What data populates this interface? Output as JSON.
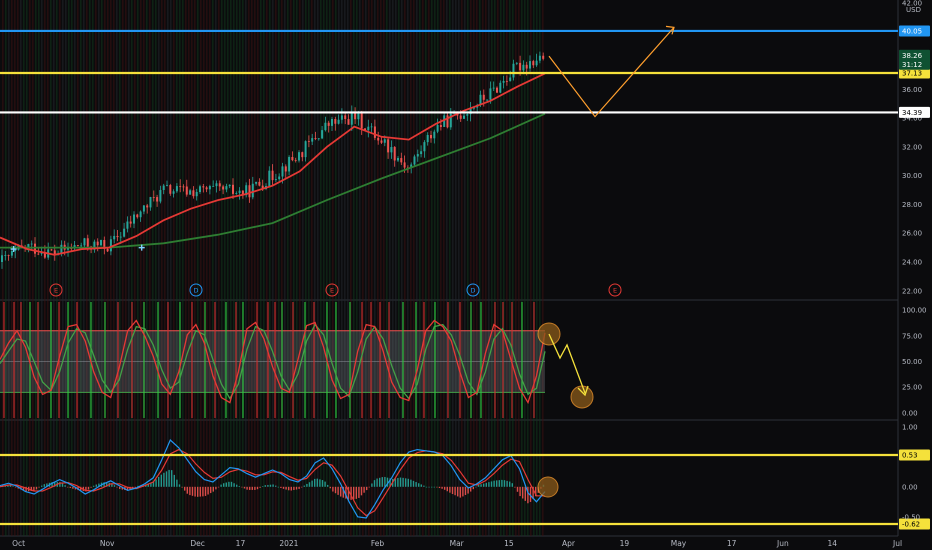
{
  "chart_data": {
    "type": "candlestick",
    "currency": "USD",
    "price_panel": {
      "y_ticks": [
        "42.00",
        "36.00",
        "34.00",
        "32.00",
        "30.00",
        "28.00",
        "26.00",
        "24.00",
        "22.00"
      ],
      "ylim": [
        21.5,
        42.2
      ],
      "last_price": "38.26",
      "countdown": "31:12",
      "horizontal_levels": [
        {
          "label": "40.05",
          "value": 40.05,
          "color": "#2196f3"
        },
        {
          "label": "37.13",
          "value": 37.13,
          "color": "#f5e13b"
        },
        {
          "label": "34.39",
          "value": 34.39,
          "color": "#ffffff"
        }
      ],
      "ma_fast": {
        "color": "#e53935",
        "x": [
          0,
          0.05,
          0.1,
          0.15,
          0.2,
          0.25,
          0.3,
          0.35,
          0.4,
          0.45,
          0.5,
          0.55,
          0.6,
          0.65,
          0.7,
          0.75,
          0.8,
          0.85,
          0.9,
          0.95,
          1.0
        ],
        "y": [
          25.7,
          24.9,
          24.5,
          24.9,
          25.0,
          25.8,
          26.9,
          27.7,
          28.3,
          28.7,
          29.3,
          30.3,
          32.0,
          33.4,
          32.7,
          32.5,
          33.6,
          34.5,
          35.2,
          36.2,
          37.1
        ]
      },
      "ma_slow": {
        "color": "#2e7d32",
        "x": [
          0,
          0.1,
          0.2,
          0.3,
          0.4,
          0.5,
          0.6,
          0.7,
          0.8,
          0.9,
          1.0
        ],
        "y": [
          25.0,
          25.0,
          25.0,
          25.3,
          25.9,
          26.7,
          28.3,
          29.8,
          31.2,
          32.6,
          34.3
        ]
      },
      "price_path": {
        "x": [
          0,
          0.05,
          0.1,
          0.15,
          0.2,
          0.25,
          0.3,
          0.35,
          0.4,
          0.45,
          0.5,
          0.55,
          0.6,
          0.65,
          0.7,
          0.75,
          0.8,
          0.85,
          0.9,
          0.95,
          1.0
        ],
        "y": [
          24.0,
          25.1,
          24.6,
          25.2,
          25.1,
          27.2,
          29.0,
          28.9,
          29.0,
          28.8,
          30.0,
          31.5,
          33.5,
          34.1,
          32.5,
          30.5,
          33.4,
          34.4,
          35.7,
          37.6,
          38.3
        ]
      },
      "event_markers": [
        {
          "label": "E",
          "color": "#e53935"
        },
        {
          "label": "D",
          "color": "#2196f3"
        },
        {
          "label": "E",
          "color": "#e53935"
        },
        {
          "label": "D",
          "color": "#2196f3"
        },
        {
          "label": "E",
          "color": "#e53935"
        }
      ]
    },
    "stoch_panel": {
      "y_ticks": [
        "100.00",
        "75.00",
        "50.00",
        "25.00",
        "0.00"
      ],
      "ylim": [
        -5,
        108
      ],
      "band": [
        20,
        80
      ],
      "k_color": "#e53935",
      "d_color": "#43a047",
      "k": [
        52,
        68,
        80,
        64,
        35,
        18,
        22,
        55,
        84,
        86,
        70,
        40,
        20,
        15,
        44,
        80,
        90,
        75,
        55,
        28,
        18,
        40,
        76,
        86,
        68,
        36,
        15,
        10,
        40,
        82,
        88,
        72,
        45,
        24,
        20,
        52,
        85,
        88,
        64,
        32,
        14,
        18,
        60,
        86,
        84,
        60,
        30,
        15,
        12,
        42,
        80,
        90,
        84,
        70,
        40,
        15,
        20,
        58,
        86,
        80,
        52,
        24,
        10,
        36,
        78
      ],
      "d": [
        48,
        60,
        72,
        70,
        50,
        30,
        22,
        40,
        68,
        82,
        78,
        56,
        32,
        20,
        32,
        62,
        84,
        82,
        66,
        42,
        24,
        30,
        58,
        80,
        76,
        52,
        28,
        14,
        28,
        62,
        84,
        80,
        60,
        36,
        22,
        38,
        70,
        86,
        76,
        48,
        24,
        16,
        40,
        72,
        84,
        72,
        46,
        24,
        14,
        28,
        62,
        84,
        86,
        76,
        56,
        30,
        18,
        40,
        72,
        82,
        66,
        38,
        18,
        24,
        60
      ]
    },
    "macd_panel": {
      "y_ticks": [
        "1.00",
        "0.00"
      ],
      "ylim": [
        -0.72,
        1.08
      ],
      "horizontal_levels": [
        {
          "label": "0.53",
          "value": 0.53,
          "color": "#f5e13b"
        },
        {
          "label": "-0.62",
          "value": -0.62,
          "color": "#f5e13b"
        }
      ],
      "neg_label": "-0.50",
      "macd_color": "#2196f3",
      "signal_color": "#e53935",
      "macd": [
        0.02,
        0.06,
        0.01,
        -0.08,
        -0.12,
        -0.04,
        0.05,
        0.12,
        0.06,
        -0.02,
        -0.12,
        -0.05,
        0.04,
        0.1,
        0.02,
        -0.06,
        -0.02,
        0.05,
        0.15,
        0.45,
        0.78,
        0.65,
        0.45,
        0.25,
        0.12,
        0.08,
        0.2,
        0.32,
        0.3,
        0.22,
        0.16,
        0.22,
        0.28,
        0.22,
        0.12,
        0.08,
        0.18,
        0.4,
        0.48,
        0.3,
        0.05,
        -0.25,
        -0.5,
        -0.52,
        -0.3,
        -0.05,
        0.15,
        0.4,
        0.58,
        0.62,
        0.6,
        0.58,
        0.52,
        0.35,
        0.12,
        -0.02,
        0.05,
        0.15,
        0.3,
        0.45,
        0.52,
        0.3,
        -0.1,
        -0.25,
        -0.08
      ],
      "signal": [
        0.0,
        0.03,
        0.03,
        -0.02,
        -0.07,
        -0.07,
        -0.01,
        0.06,
        0.07,
        0.02,
        -0.06,
        -0.07,
        -0.02,
        0.05,
        0.05,
        -0.01,
        -0.03,
        0.02,
        0.08,
        0.28,
        0.55,
        0.62,
        0.55,
        0.38,
        0.24,
        0.14,
        0.16,
        0.25,
        0.29,
        0.26,
        0.2,
        0.2,
        0.25,
        0.24,
        0.17,
        0.11,
        0.14,
        0.29,
        0.4,
        0.36,
        0.18,
        -0.08,
        -0.35,
        -0.48,
        -0.4,
        -0.18,
        0.05,
        0.28,
        0.48,
        0.57,
        0.6,
        0.58,
        0.55,
        0.44,
        0.26,
        0.06,
        0.03,
        0.1,
        0.22,
        0.36,
        0.46,
        0.42,
        0.12,
        -0.15,
        -0.15
      ]
    },
    "x_ticks": [
      {
        "label": "Oct",
        "pos": 0.02
      },
      {
        "label": "Nov",
        "pos": 0.115
      },
      {
        "label": "Dec",
        "pos": 0.212
      },
      {
        "label": "17",
        "pos": 0.258
      },
      {
        "label": "2021",
        "pos": 0.31
      },
      {
        "label": "Feb",
        "pos": 0.405
      },
      {
        "label": "Mar",
        "pos": 0.49
      },
      {
        "label": "15",
        "pos": 0.546
      },
      {
        "label": "Apr",
        "pos": 0.61
      },
      {
        "label": "19",
        "pos": 0.67
      },
      {
        "label": "May",
        "pos": 0.728
      },
      {
        "label": "17",
        "pos": 0.785
      },
      {
        "label": "Jun",
        "pos": 0.84
      },
      {
        "label": "14",
        "pos": 0.893
      },
      {
        "label": "Jul",
        "pos": 0.963
      }
    ],
    "annotations": {
      "price_projection_color": "#ff9f2e",
      "stoch_projection_color": "#f5e13b"
    }
  }
}
